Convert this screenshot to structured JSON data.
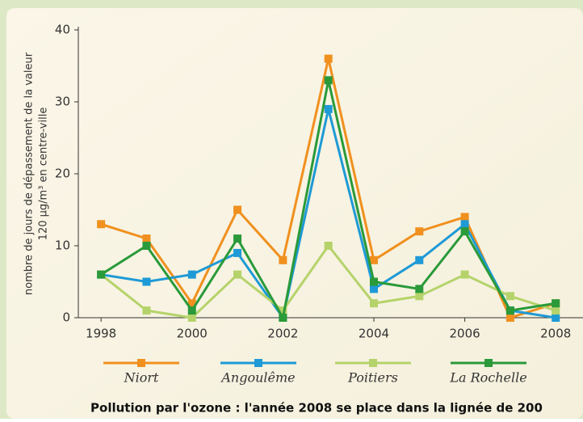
{
  "chart_data": {
    "type": "line",
    "caption": "Pollution par l'ozone : l'année 2008 se place dans la lignée de 200",
    "y_label": [
      "nombre de jours de dépassement de la valeur",
      "120 µg/m³ en centre-ville"
    ],
    "x": [
      1998,
      1999,
      2000,
      2001,
      2002,
      2003,
      2004,
      2005,
      2006,
      2007,
      2008
    ],
    "series": [
      {
        "name": "Niort",
        "color": "#f0901e",
        "values": [
          13,
          11,
          2,
          15,
          8,
          36,
          8,
          12,
          14,
          0,
          2
        ]
      },
      {
        "name": "Angoulême",
        "color": "#1e9ad6",
        "values": [
          6,
          5,
          6,
          9,
          0,
          29,
          4,
          8,
          13,
          1,
          0
        ]
      },
      {
        "name": "Poitiers",
        "color": "#b5d36a",
        "values": [
          6,
          1,
          0,
          6,
          1,
          10,
          2,
          3,
          6,
          3,
          1
        ]
      },
      {
        "name": "La Rochelle",
        "color": "#2a9a3a",
        "values": [
          6,
          10,
          1,
          11,
          0,
          33,
          5,
          4,
          12,
          1,
          2
        ]
      }
    ],
    "xlim": [
      1997.5,
      2008.6
    ],
    "xticks": [
      1998,
      2000,
      2002,
      2004,
      2006,
      2008
    ],
    "ylim": [
      0,
      40
    ],
    "yticks": [
      0,
      10,
      20,
      30,
      40
    ]
  }
}
